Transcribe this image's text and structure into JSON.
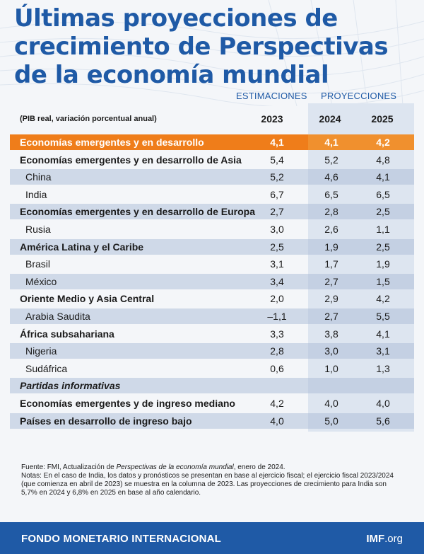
{
  "title_lines": [
    "Últimas proyecciones de",
    "crecimiento de Perspectivas",
    "de la economía mundial"
  ],
  "groups": {
    "estimates": "ESTIMACIONES",
    "projections": "PROYECCIONES"
  },
  "units": "(PIB real, variación porcentual anual)",
  "colors": {
    "title": "#1f5aa6",
    "highlight": "#ef7d1a",
    "footer": "#1f5aa6"
  },
  "chart_data": {
    "type": "table",
    "title": "Últimas proyecciones de crecimiento de Perspectivas de la economía mundial",
    "columns": [
      "2023",
      "2024",
      "2025"
    ],
    "rows": [
      {
        "label": "Economías emergentes y en desarrollo",
        "values": [
          "4,1",
          "4,1",
          "4,2"
        ]
      },
      {
        "label": "Economías emergentes y en desarrollo de Asia",
        "values": [
          "5,4",
          "5,2",
          "4,8"
        ]
      },
      {
        "label": "China",
        "values": [
          "5,2",
          "4,6",
          "4,1"
        ]
      },
      {
        "label": "India",
        "values": [
          "6,7",
          "6,5",
          "6,5"
        ]
      },
      {
        "label": "Economías emergentes y en desarrollo de Europa",
        "values": [
          "2,7",
          "2,8",
          "2,5"
        ]
      },
      {
        "label": "Rusia",
        "values": [
          "3,0",
          "2,6",
          "1,1"
        ]
      },
      {
        "label": "América Latina y el Caribe",
        "values": [
          "2,5",
          "1,9",
          "2,5"
        ]
      },
      {
        "label": "Brasil",
        "values": [
          "3,1",
          "1,7",
          "1,9"
        ]
      },
      {
        "label": "México",
        "values": [
          "3,4",
          "2,7",
          "1,5"
        ]
      },
      {
        "label": "Oriente Medio y Asia Central",
        "values": [
          "2,0",
          "2,9",
          "4,2"
        ]
      },
      {
        "label": "Arabia Saudita",
        "values": [
          "–1,1",
          "2,7",
          "5,5"
        ]
      },
      {
        "label": "África subsahariana",
        "values": [
          "3,3",
          "3,8",
          "4,1"
        ]
      },
      {
        "label": "Nigeria",
        "values": [
          "2,8",
          "3,0",
          "3,1"
        ]
      },
      {
        "label": "Sudáfrica",
        "values": [
          "0,6",
          "1,0",
          "1,3"
        ]
      },
      {
        "label": "Partidas informativas",
        "values": [
          "",
          "",
          ""
        ]
      },
      {
        "label": "Economías emergentes y de ingreso mediano",
        "values": [
          "4,2",
          "4,0",
          "4,0"
        ]
      },
      {
        "label": "Países en desarrollo de ingreso bajo",
        "values": [
          "4,0",
          "5,0",
          "5,6"
        ]
      }
    ]
  },
  "notes": {
    "source_prefix": "Fuente: FMI, Actualización de ",
    "source_italic": "Perspectivas de la economía mundial",
    "source_suffix": ", enero de 2024.",
    "body": "Notas: En el caso de India, los datos y pronósticos se presentan en base al ejercicio fiscal; el ejercicio fiscal 2023/2024 (que comienza en abril de 2023) se muestra en la columna de 2023. Las proyecciones de crecimiento para India son 5,7% en 2024 y 6,8% en 2025 en base al año calendario."
  },
  "footer": {
    "org": "FONDO MONETARIO INTERNACIONAL",
    "site_bold": "IMF",
    "site_rest": ".org"
  }
}
